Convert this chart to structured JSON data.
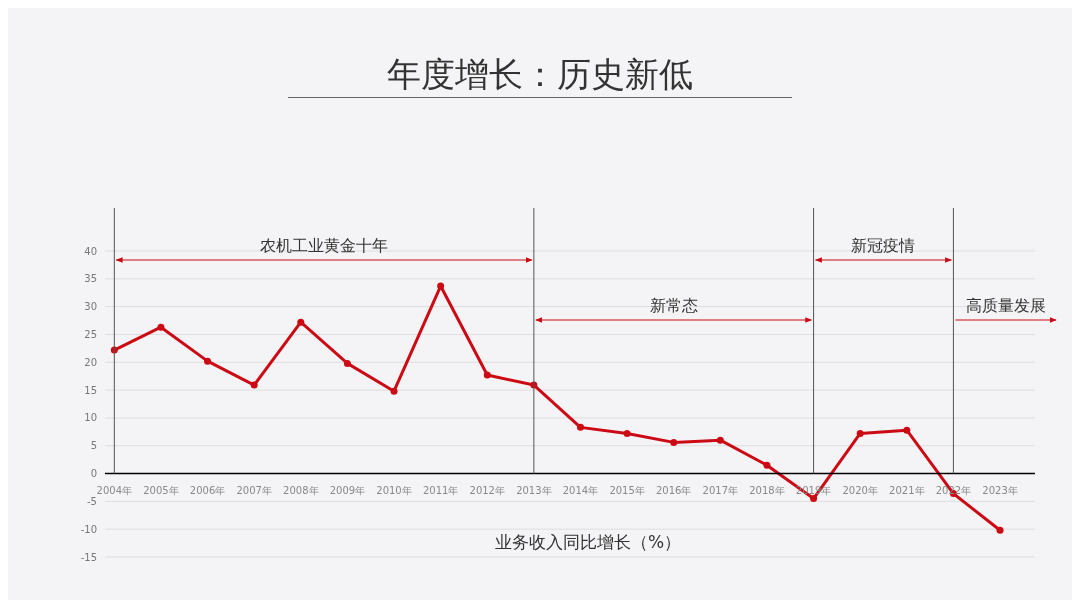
{
  "chart_data": {
    "type": "line",
    "title": "年度增长：历史新低",
    "xlabel": "业务收入同比增长（%）",
    "categories": [
      "2004年",
      "2005年",
      "2006年",
      "2007年",
      "2008年",
      "2009年",
      "2010年",
      "2011年",
      "2012年",
      "2013年",
      "2014年",
      "2015年",
      "2016年",
      "2017年",
      "2018年",
      "2019年",
      "2020年",
      "2021年",
      "2022年",
      "2023年"
    ],
    "series": [
      {
        "color": "#cc0a14",
        "values": [
          22.2,
          26.3,
          20.2,
          15.9,
          27.2,
          19.8,
          14.8,
          33.7,
          17.7,
          15.9,
          8.3,
          7.2,
          5.6,
          6.0,
          1.5,
          -4.5,
          7.2,
          7.8,
          -3.6,
          -10.2
        ]
      }
    ],
    "ylim": [
      -15,
      40
    ],
    "yticks": [
      -15,
      -10,
      -5,
      0,
      5,
      10,
      15,
      20,
      25,
      30,
      35,
      40
    ],
    "grid": "y",
    "marker": "circle",
    "line_style": "solid",
    "legend": false,
    "ref_lines": [
      {
        "axis": "x",
        "value": "2004年",
        "color": "#555555"
      },
      {
        "axis": "x",
        "value": "2013年",
        "color": "#555555"
      },
      {
        "axis": "x",
        "value": "2019年",
        "color": "#555555"
      },
      {
        "axis": "x",
        "value": "2022年",
        "color": "#555555"
      }
    ],
    "annotations": [
      "农机工业黄金十年",
      "新常态",
      "新冠疫情",
      "高质量发展"
    ]
  }
}
